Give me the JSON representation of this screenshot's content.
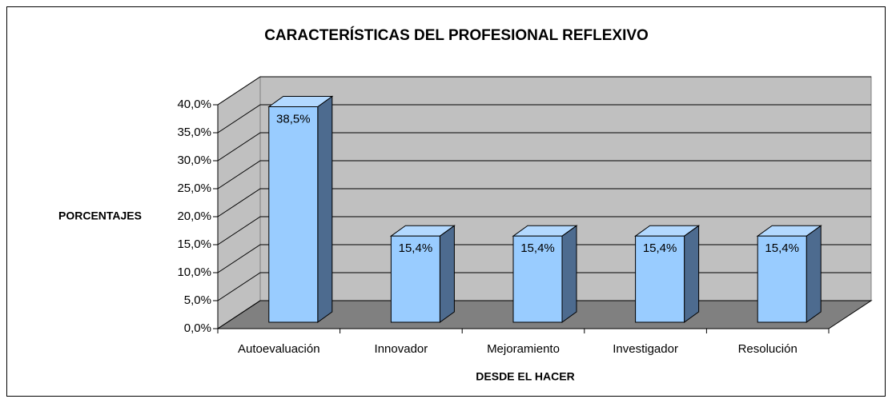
{
  "chart_data": {
    "type": "bar3d",
    "title": "CARACTERÍSTICAS DEL PROFESIONAL REFLEXIVO",
    "x_label": "DESDE EL HACER",
    "y_label": "PORCENTAJES",
    "categories": [
      "Autoevaluación",
      "Innovador",
      "Mejoramiento",
      "Investigador",
      "Resolución"
    ],
    "values": [
      38.5,
      15.4,
      15.4,
      15.4,
      15.4
    ],
    "value_labels": [
      "38,5%",
      "15,4%",
      "15,4%",
      "15,4%",
      "15,4%"
    ],
    "color": "#99ccff",
    "ylim": [
      0,
      40
    ],
    "yticks": [
      {
        "value": 0,
        "label": "0,0%"
      },
      {
        "value": 5,
        "label": "5,0%"
      },
      {
        "value": 10,
        "label": "10,0%"
      },
      {
        "value": 15,
        "label": "15,0%"
      },
      {
        "value": 20,
        "label": "20,0%"
      },
      {
        "value": 25,
        "label": "25,0%"
      },
      {
        "value": 30,
        "label": "30,0%"
      },
      {
        "value": 35,
        "label": "35,0%"
      },
      {
        "value": 40,
        "label": "40,0%"
      }
    ],
    "grid": true
  }
}
